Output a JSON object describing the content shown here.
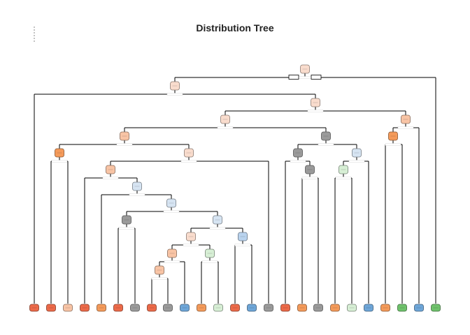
{
  "title": "Distribution Tree",
  "icons": {
    "menu": "vertical-dots-icon"
  },
  "palette": {
    "dark_orange": "#ec6a49",
    "orange": "#f49a5a",
    "light_orange": "#f8c4a5",
    "pale_orange": "#f9dccd",
    "pale_blue": "#d6e4f2",
    "light_blue": "#b9d3ee",
    "blue": "#6ea6d8",
    "gray": "#9a9a9a",
    "pale_green": "#d7efd5",
    "light_green": "#b8e3b4",
    "green": "#6fc26c"
  },
  "tree": {
    "root": "n1",
    "nodes": [
      {
        "id": "n1",
        "fill": "pale_orange",
        "children": [
          "n2",
          "L25"
        ],
        "label_style": "box"
      },
      {
        "id": "n2",
        "fill": "pale_orange",
        "children": [
          "L1",
          "n3"
        ]
      },
      {
        "id": "n3",
        "fill": "pale_orange",
        "children": [
          "n4",
          "n21"
        ]
      },
      {
        "id": "n4",
        "fill": "pale_orange",
        "children": [
          "n5",
          "n16"
        ]
      },
      {
        "id": "n5",
        "fill": "light_orange",
        "children": [
          "n6",
          "n7"
        ]
      },
      {
        "id": "n6",
        "fill": "orange",
        "children": [
          "L2",
          "L3"
        ]
      },
      {
        "id": "n7",
        "fill": "pale_orange",
        "children": [
          "n8",
          "L16"
        ]
      },
      {
        "id": "n8",
        "fill": "light_orange",
        "children": [
          "L4",
          "n9"
        ]
      },
      {
        "id": "n9",
        "fill": "pale_blue",
        "children": [
          "L5",
          "n10"
        ]
      },
      {
        "id": "n10",
        "fill": "pale_blue",
        "children": [
          "n11",
          "n12"
        ]
      },
      {
        "id": "n11",
        "fill": "gray",
        "children": [
          "L6",
          "L7"
        ]
      },
      {
        "id": "n12",
        "fill": "pale_blue",
        "children": [
          "n13",
          "n15"
        ]
      },
      {
        "id": "n13",
        "fill": "pale_orange",
        "children": [
          "n14",
          "n14b"
        ]
      },
      {
        "id": "n14",
        "fill": "light_orange",
        "children": [
          "n14a",
          "L11"
        ]
      },
      {
        "id": "n14a",
        "fill": "light_orange",
        "children": [
          "L8",
          "L9"
        ]
      },
      {
        "id": "n14b",
        "fill": "pale_green",
        "children": [
          "L12",
          "L13"
        ]
      },
      {
        "id": "n15",
        "fill": "light_blue",
        "children": [
          "L14",
          "L15"
        ]
      },
      {
        "id": "n16",
        "fill": "gray",
        "children": [
          "n17",
          "n18"
        ]
      },
      {
        "id": "n17",
        "fill": "gray",
        "children": [
          "L17",
          "n17a"
        ]
      },
      {
        "id": "n17a",
        "fill": "gray",
        "children": [
          "L18",
          "L19"
        ]
      },
      {
        "id": "n18",
        "fill": "pale_blue",
        "children": [
          "n19",
          "L22"
        ]
      },
      {
        "id": "n19",
        "fill": "pale_green",
        "children": [
          "L20",
          "L21"
        ]
      },
      {
        "id": "n21",
        "fill": "light_orange",
        "children": [
          "n22",
          "L24"
        ]
      },
      {
        "id": "n22",
        "fill": "orange",
        "children": [
          "L23",
          "L23b"
        ]
      }
    ],
    "leaves": [
      {
        "id": "L1",
        "fill": "dark_orange"
      },
      {
        "id": "L2",
        "fill": "dark_orange"
      },
      {
        "id": "L3",
        "fill": "light_orange"
      },
      {
        "id": "L4",
        "fill": "dark_orange"
      },
      {
        "id": "L5",
        "fill": "orange"
      },
      {
        "id": "L6",
        "fill": "dark_orange"
      },
      {
        "id": "L7",
        "fill": "gray"
      },
      {
        "id": "L8",
        "fill": "dark_orange"
      },
      {
        "id": "L9",
        "fill": "gray"
      },
      {
        "id": "L11",
        "fill": "blue"
      },
      {
        "id": "L12",
        "fill": "orange"
      },
      {
        "id": "L13",
        "fill": "pale_green"
      },
      {
        "id": "L14",
        "fill": "dark_orange"
      },
      {
        "id": "L15",
        "fill": "blue"
      },
      {
        "id": "L16",
        "fill": "gray"
      },
      {
        "id": "L17",
        "fill": "dark_orange"
      },
      {
        "id": "L18",
        "fill": "orange"
      },
      {
        "id": "L19",
        "fill": "gray"
      },
      {
        "id": "L20",
        "fill": "orange"
      },
      {
        "id": "L21",
        "fill": "pale_green"
      },
      {
        "id": "L22",
        "fill": "blue"
      },
      {
        "id": "L23",
        "fill": "orange"
      },
      {
        "id": "L23b",
        "fill": "green"
      },
      {
        "id": "L24",
        "fill": "blue"
      },
      {
        "id": "L25",
        "fill": "green"
      }
    ]
  }
}
